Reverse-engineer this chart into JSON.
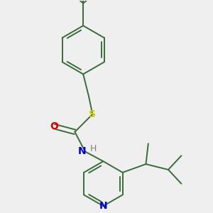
{
  "background_color": "#efefef",
  "bond_color": "#3a6b3a",
  "sulfur_color": "#cccc00",
  "oxygen_color": "#dd0000",
  "nitrogen_color": "#0000cc",
  "hydrogen_color": "#808080",
  "figsize": [
    3.0,
    3.0
  ],
  "dpi": 100,
  "xlim": [
    -1.3,
    2.2
  ],
  "ylim": [
    -2.0,
    2.5
  ]
}
